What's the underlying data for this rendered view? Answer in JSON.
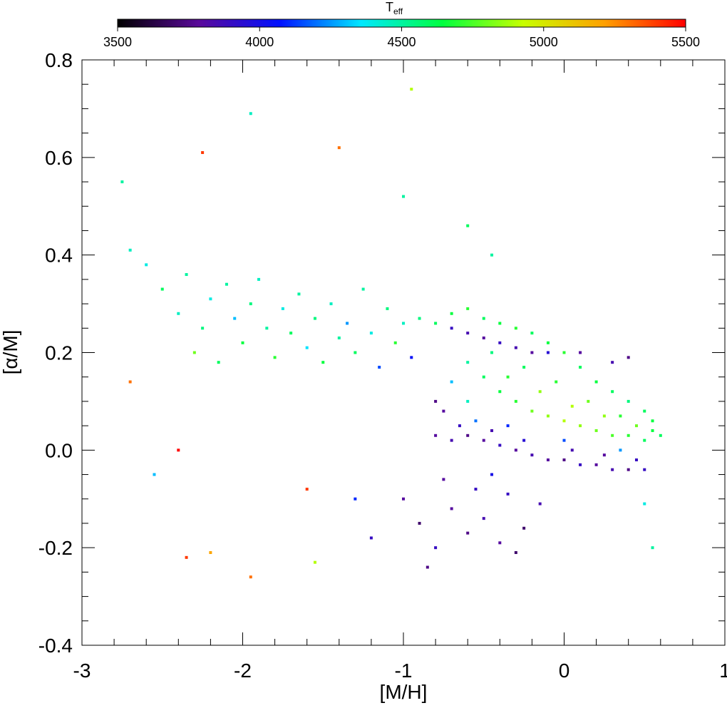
{
  "chart_data": {
    "type": "scatter",
    "xlabel": "[M/H]",
    "ylabel": "[α/M]",
    "xlim": [
      -3,
      1
    ],
    "ylim": [
      -0.4,
      0.8
    ],
    "xticks": [
      -3,
      -2,
      -1,
      0,
      1
    ],
    "yticks": [
      -0.4,
      -0.2,
      {
        "value": 0,
        "label": "0.0"
      },
      0.2,
      0.4,
      0.6,
      0.8
    ],
    "xminorticks": [
      -2.8,
      -2.6,
      -2.4,
      -2.2,
      -1.8,
      -1.6,
      -1.4,
      -1.2,
      -0.8,
      -0.6,
      -0.4,
      -0.2,
      0.2,
      0.4,
      0.6,
      0.8
    ],
    "yminorticks": [
      -0.35,
      -0.3,
      -0.25,
      -0.15,
      -0.1,
      -0.05,
      0.05,
      0.1,
      0.15,
      0.25,
      0.3,
      0.35,
      0.45,
      0.5,
      0.55,
      0.65,
      0.7,
      0.75
    ],
    "colorbar": {
      "label": "T",
      "label_sub": "eff",
      "clim": [
        3500,
        5500
      ],
      "ticks": [
        3500,
        4000,
        4500,
        5000,
        5500
      ],
      "colormap": [
        "#000000",
        "#5a0a9a",
        "#0010ff",
        "#00e8ff",
        "#00ff40",
        "#c8ff00",
        "#ffa000",
        "#ff0000"
      ]
    },
    "x": [
      -2.75,
      -2.7,
      -2.6,
      -2.5,
      -2.4,
      -2.35,
      -2.3,
      -2.25,
      -2.2,
      -2.15,
      -2.1,
      -2.05,
      -2.0,
      -1.95,
      -1.9,
      -1.85,
      -1.8,
      -1.75,
      -1.7,
      -1.65,
      -1.6,
      -1.55,
      -1.5,
      -1.45,
      -1.4,
      -1.35,
      -1.3,
      -1.25,
      -1.2,
      -1.15,
      -1.1,
      -1.05,
      -1.0,
      -0.95,
      -0.9,
      -2.25,
      -1.4,
      -1.95,
      -0.95,
      -2.2,
      -1.95,
      -2.35,
      -2.4,
      -2.55,
      -2.7,
      -1.55,
      -1.6,
      -1.0,
      -0.9,
      -0.8,
      -0.7,
      -0.6,
      -0.5,
      -0.4,
      -0.35,
      -0.25,
      -0.15,
      -0.75,
      -0.55,
      -0.45,
      -1.2,
      -0.85,
      -1.3,
      -0.3,
      -0.8,
      -0.7,
      -0.6,
      -0.5,
      -0.4,
      -0.3,
      -0.2,
      -0.1,
      0.0,
      0.1,
      0.2,
      0.3,
      0.4,
      0.5,
      -0.65,
      -0.45,
      -0.25,
      0.05,
      0.25,
      0.45,
      -0.8,
      -0.75,
      -0.7,
      -0.6,
      -0.5,
      -0.4,
      -0.3,
      -0.2,
      -0.1,
      0.1,
      0.3,
      0.4,
      -0.8,
      -0.7,
      -0.6,
      -0.5,
      -0.4,
      -0.3,
      -0.2,
      -0.1,
      0.0,
      0.1,
      0.2,
      0.3,
      0.4,
      0.5,
      0.55,
      -0.6,
      -0.5,
      -0.4,
      -0.3,
      -0.2,
      -0.1,
      0.0,
      0.1,
      0.2,
      0.3,
      0.4,
      0.5,
      -0.45,
      -0.25,
      -0.05,
      0.15,
      0.35,
      0.55,
      -0.15,
      0.05,
      0.25,
      -0.35,
      -0.6,
      -0.7,
      0.6,
      0.45,
      -0.55,
      -0.35,
      0.0,
      0.35,
      0.5,
      0.55,
      -0.45,
      -0.6,
      -1.0
    ],
    "y": [
      0.55,
      0.41,
      0.38,
      0.33,
      0.28,
      0.36,
      0.2,
      0.25,
      0.31,
      0.18,
      0.34,
      0.27,
      0.22,
      0.3,
      0.35,
      0.25,
      0.19,
      0.29,
      0.24,
      0.32,
      0.21,
      0.27,
      0.18,
      0.3,
      0.23,
      0.26,
      0.2,
      0.33,
      0.24,
      0.17,
      0.29,
      0.22,
      0.26,
      0.19,
      0.27,
      0.61,
      0.62,
      0.69,
      0.74,
      -0.21,
      -0.26,
      -0.22,
      0.0,
      -0.05,
      0.14,
      -0.23,
      -0.08,
      -0.1,
      -0.15,
      -0.2,
      -0.12,
      -0.17,
      -0.14,
      -0.19,
      -0.09,
      -0.16,
      -0.11,
      -0.06,
      -0.08,
      -0.05,
      -0.18,
      -0.24,
      -0.1,
      -0.21,
      0.03,
      0.02,
      0.03,
      0.02,
      0.01,
      0.0,
      -0.01,
      -0.02,
      -0.02,
      -0.03,
      -0.03,
      -0.04,
      -0.04,
      -0.04,
      0.05,
      0.04,
      0.02,
      0.0,
      -0.01,
      -0.02,
      0.1,
      0.08,
      0.25,
      0.24,
      0.23,
      0.22,
      0.21,
      0.2,
      0.2,
      0.2,
      0.18,
      0.19,
      0.26,
      0.28,
      0.29,
      0.27,
      0.26,
      0.25,
      0.24,
      0.22,
      0.2,
      0.17,
      0.14,
      0.12,
      0.1,
      0.08,
      0.06,
      0.18,
      0.15,
      0.12,
      0.1,
      0.08,
      0.07,
      0.06,
      0.05,
      0.04,
      0.03,
      0.03,
      0.02,
      0.2,
      0.17,
      0.14,
      0.1,
      0.07,
      0.04,
      0.12,
      0.09,
      0.07,
      0.15,
      0.1,
      0.14,
      0.03,
      0.05,
      0.06,
      0.05,
      0.02,
      0.0,
      -0.11,
      -0.2,
      0.4,
      0.46,
      0.52
    ],
    "c": [
      4500,
      4450,
      4400,
      4600,
      4450,
      4500,
      4800,
      4550,
      4400,
      4600,
      4500,
      4300,
      4650,
      4550,
      4450,
      4500,
      4700,
      4400,
      4600,
      4500,
      4350,
      4550,
      4650,
      4450,
      4500,
      4250,
      4600,
      4500,
      4400,
      4150,
      4550,
      4700,
      4450,
      4050,
      4550,
      5400,
      5300,
      4450,
      4900,
      5200,
      5300,
      5400,
      5500,
      4300,
      5300,
      4900,
      5400,
      3800,
      3700,
      3900,
      3800,
      3750,
      3850,
      3800,
      3900,
      3700,
      3850,
      3800,
      3900,
      4000,
      3900,
      3750,
      4100,
      3700,
      3800,
      3850,
      3750,
      3800,
      3900,
      3800,
      3850,
      3800,
      3750,
      3900,
      3800,
      3850,
      3750,
      3900,
      3900,
      3850,
      3950,
      3850,
      3800,
      3900,
      3750,
      3800,
      3900,
      3850,
      3800,
      3900,
      3850,
      3800,
      3950,
      3800,
      3850,
      3750,
      4600,
      4650,
      4700,
      4600,
      4650,
      4700,
      4600,
      4650,
      4700,
      4600,
      4650,
      4600,
      4550,
      4600,
      4650,
      4500,
      4600,
      4650,
      4700,
      4800,
      4850,
      4900,
      4850,
      4800,
      4750,
      4700,
      4600,
      4550,
      4600,
      4700,
      4800,
      4700,
      4650,
      4850,
      4900,
      4850,
      4700,
      4450,
      4300,
      4600,
      4800,
      4200,
      4100,
      4150,
      4250,
      4400,
      4500,
      4500,
      4600,
      4500
    ]
  }
}
